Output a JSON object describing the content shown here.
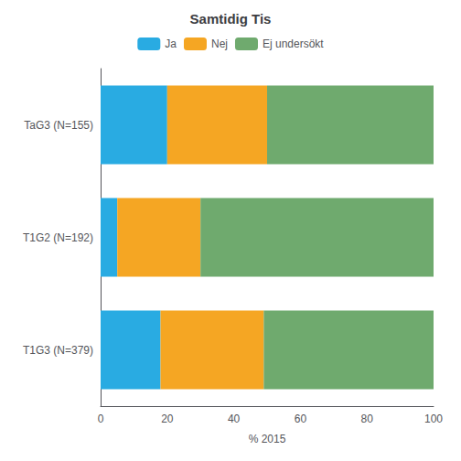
{
  "chart_data": {
    "type": "bar",
    "orientation": "horizontal",
    "stacked": true,
    "title": "Samtidig Tis",
    "xlabel": "% 2015",
    "categories": [
      "TaG3 (N=155)",
      "T1G2 (N=192)",
      "T1G3 (N=379)"
    ],
    "series": [
      {
        "name": "Ja",
        "color": "#29ABE2",
        "values": [
          20,
          5,
          18
        ]
      },
      {
        "name": "Nej",
        "color": "#F5A623",
        "values": [
          30,
          25,
          31
        ]
      },
      {
        "name": "Ej undersökt",
        "color": "#6FAA6E",
        "values": [
          50,
          70,
          51
        ]
      }
    ],
    "xlim": [
      0,
      100
    ],
    "xticks": [
      0,
      20,
      40,
      60,
      80,
      100
    ],
    "grid": false,
    "legend": "top"
  }
}
